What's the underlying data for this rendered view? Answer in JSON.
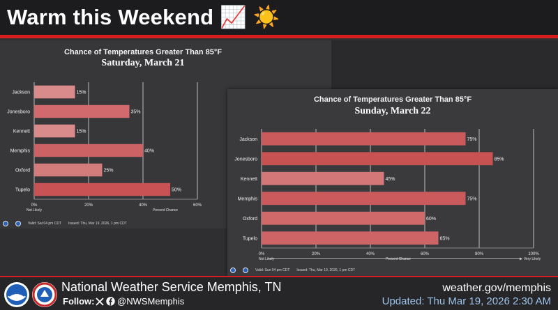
{
  "header": {
    "title": "Warm this Weekend 📈 ☀️"
  },
  "footer": {
    "org": "National Weather Service Memphis, TN",
    "follow_label": "Follow:",
    "x_icon": "x-icon",
    "facebook_icon": "facebook-icon",
    "handle": "@NWSMemphis",
    "url": "weather.gov/memphis",
    "updated": "Updated: Thu Mar 19, 2026 2:30 AM"
  },
  "colors": {
    "header_red": "#d81e1e",
    "bar_dark": "#c84a4c",
    "bar_light": "#e0a3a4",
    "updated_text": "#9ec3ea"
  },
  "chart_data": [
    {
      "type": "bar",
      "orientation": "horizontal",
      "title": "Chance of Temperatures Greater Than 85°F",
      "subtitle": "Saturday, March 21",
      "categories": [
        "Jackson",
        "Jonesboro",
        "Kennett",
        "Memphis",
        "Oxford",
        "Tupelo"
      ],
      "values": [
        15,
        35,
        15,
        40,
        25,
        50
      ],
      "value_labels": [
        "15%",
        "35%",
        "15%",
        "40%",
        "25%",
        "50%"
      ],
      "xlim": [
        0,
        60
      ],
      "xticks": [
        "0%",
        "20%",
        "40%",
        "60%"
      ],
      "xlabel": "Percent Chance",
      "low_label": "Not Likely",
      "grid": true,
      "valid": "Valid: Sat 04 pm CDT",
      "issued": "Issued: Thu, Mar 19, 2026, 1 pm CDT"
    },
    {
      "type": "bar",
      "orientation": "horizontal",
      "title": "Chance of Temperatures Greater Than 85°F",
      "subtitle": "Sunday, March 22",
      "categories": [
        "Jackson",
        "Jonesboro",
        "Kennett",
        "Memphis",
        "Oxford",
        "Tupelo"
      ],
      "values": [
        75,
        85,
        45,
        75,
        60,
        65
      ],
      "value_labels": [
        "75%",
        "85%",
        "45%",
        "75%",
        "60%",
        "65%"
      ],
      "xlim": [
        0,
        100
      ],
      "xticks": [
        "0%",
        "20%",
        "40%",
        "60%",
        "80%",
        "100%"
      ],
      "xlabel": "Percent Chance",
      "low_label": "Not Likely",
      "high_label": "Very Likely",
      "grid": true,
      "valid": "Valid: Sun 04 pm CDT",
      "issued": "Issued: Thu, Mar 19, 2026, 1 pm CDT"
    }
  ]
}
